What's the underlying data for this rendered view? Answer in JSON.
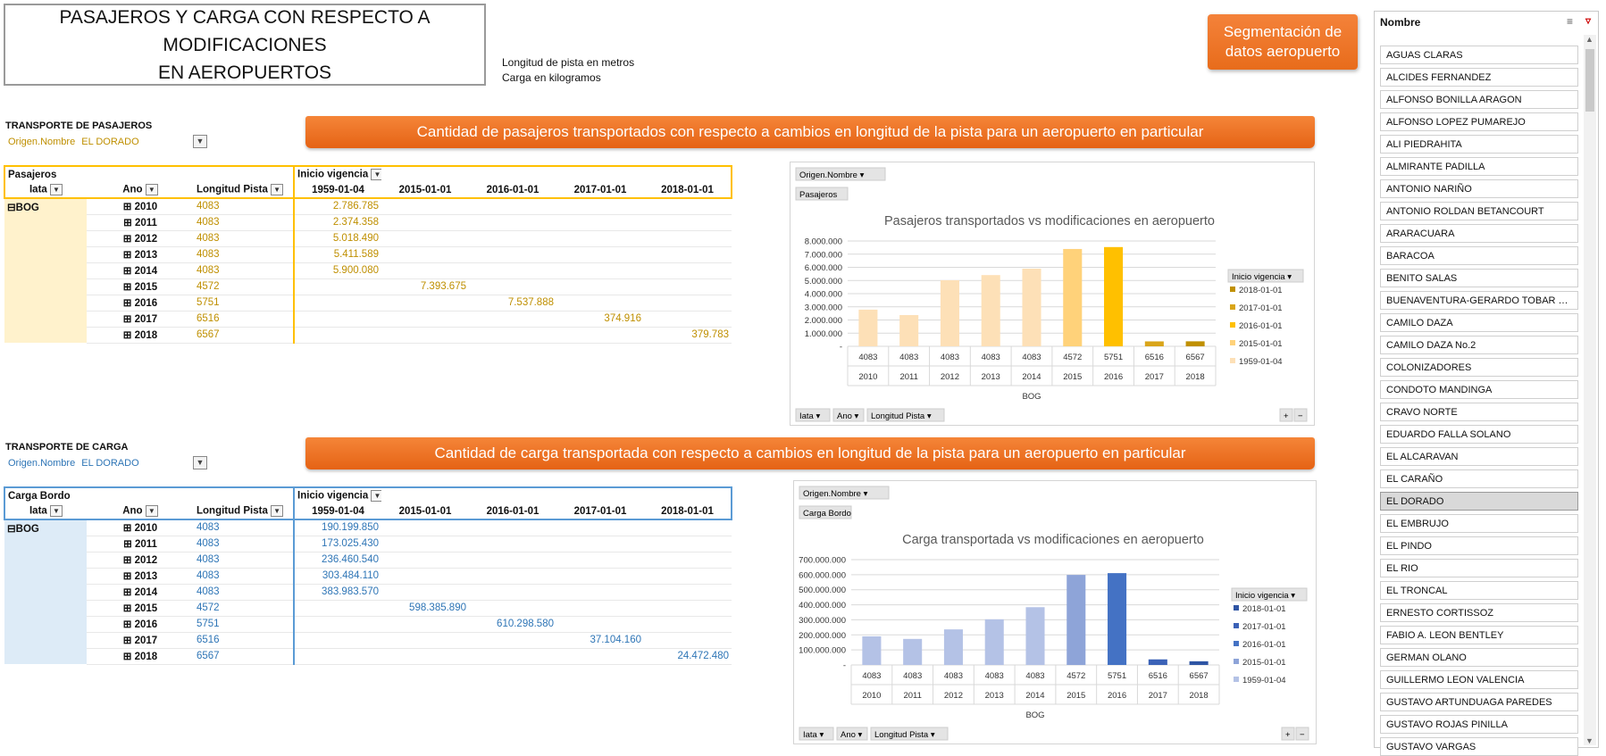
{
  "title": {
    "line1": "PASAJEROS Y CARGA CON RESPECTO A MODIFICACIONES",
    "line2": "EN AEROPUERTOS"
  },
  "units": {
    "line1": "Longitud de pista en metros",
    "line2": "Carga en kilogramos"
  },
  "segment_button": {
    "line1": "Segmentación de",
    "line2": "datos aeropuerto"
  },
  "pax": {
    "section_label": "TRANSPORTE DE PASAJEROS",
    "filter_key": "Origen.Nombre",
    "filter_val": "EL DORADO",
    "banner": "Cantidad de pasajeros transportados con respecto a cambios en longitud de la pista para un aeropuerto en particular",
    "measure": "Pasajeros",
    "col_field": "Inicio vigencia",
    "headers": {
      "iata": "Iata",
      "ano": "Ano",
      "longitud": "Longitud Pista"
    },
    "dates": [
      "1959-01-04",
      "2015-01-01",
      "2016-01-01",
      "2017-01-01",
      "2018-01-01"
    ],
    "iata": "BOG",
    "rows": [
      {
        "year": "2010",
        "len": "4083",
        "vals": [
          "2.786.785",
          "",
          "",
          "",
          ""
        ]
      },
      {
        "year": "2011",
        "len": "4083",
        "vals": [
          "2.374.358",
          "",
          "",
          "",
          ""
        ]
      },
      {
        "year": "2012",
        "len": "4083",
        "vals": [
          "5.018.490",
          "",
          "",
          "",
          ""
        ]
      },
      {
        "year": "2013",
        "len": "4083",
        "vals": [
          "5.411.589",
          "",
          "",
          "",
          ""
        ]
      },
      {
        "year": "2014",
        "len": "4083",
        "vals": [
          "5.900.080",
          "",
          "",
          "",
          ""
        ]
      },
      {
        "year": "2015",
        "len": "4572",
        "vals": [
          "",
          "7.393.675",
          "",
          "",
          ""
        ]
      },
      {
        "year": "2016",
        "len": "5751",
        "vals": [
          "",
          "",
          "7.537.888",
          "",
          ""
        ]
      },
      {
        "year": "2017",
        "len": "6516",
        "vals": [
          "",
          "",
          "",
          "374.916",
          ""
        ]
      },
      {
        "year": "2018",
        "len": "6567",
        "vals": [
          "",
          "",
          "",
          "",
          "379.783"
        ]
      }
    ],
    "chart": {
      "filter_pill": "Origen.Nombre",
      "measure_pill": "Pasajeros",
      "title": "Pasajeros transportados vs modificaciones en aeropuerto",
      "legend_title": "Inicio vigencia",
      "axis_pills": [
        "Iata",
        "Ano",
        "Longitud  Pista"
      ],
      "yticks": [
        "8.000.000",
        "7.000.000",
        "6.000.000",
        "5.000.000",
        "4.000.000",
        "3.000.000",
        "2.000.000",
        "1.000.000",
        "-"
      ],
      "xgroup": "BOG"
    }
  },
  "cargo": {
    "section_label": "TRANSPORTE DE CARGA",
    "filter_key": "Origen.Nombre",
    "filter_val": "EL DORADO",
    "banner": "Cantidad de carga transportada con respecto a cambios en longitud de la pista para un aeropuerto en particular",
    "measure": "Carga Bordo",
    "col_field": "Inicio vigencia",
    "headers": {
      "iata": "Iata",
      "ano": "Ano",
      "longitud": "Longitud Pista"
    },
    "dates": [
      "1959-01-04",
      "2015-01-01",
      "2016-01-01",
      "2017-01-01",
      "2018-01-01"
    ],
    "iata": "BOG",
    "rows": [
      {
        "year": "2010",
        "len": "4083",
        "vals": [
          "190.199.850",
          "",
          "",
          "",
          ""
        ]
      },
      {
        "year": "2011",
        "len": "4083",
        "vals": [
          "173.025.430",
          "",
          "",
          "",
          ""
        ]
      },
      {
        "year": "2012",
        "len": "4083",
        "vals": [
          "236.460.540",
          "",
          "",
          "",
          ""
        ]
      },
      {
        "year": "2013",
        "len": "4083",
        "vals": [
          "303.484.110",
          "",
          "",
          "",
          ""
        ]
      },
      {
        "year": "2014",
        "len": "4083",
        "vals": [
          "383.983.570",
          "",
          "",
          "",
          ""
        ]
      },
      {
        "year": "2015",
        "len": "4572",
        "vals": [
          "",
          "598.385.890",
          "",
          "",
          ""
        ]
      },
      {
        "year": "2016",
        "len": "5751",
        "vals": [
          "",
          "",
          "610.298.580",
          "",
          ""
        ]
      },
      {
        "year": "2017",
        "len": "6516",
        "vals": [
          "",
          "",
          "",
          "37.104.160",
          ""
        ]
      },
      {
        "year": "2018",
        "len": "6567",
        "vals": [
          "",
          "",
          "",
          "",
          "24.472.480"
        ]
      }
    ],
    "chart": {
      "filter_pill": "Origen.Nombre",
      "measure_pill": "Carga Bordo",
      "title": "Carga transportada vs modificaciones en aeropuerto",
      "legend_title": "Inicio vigencia",
      "axis_pills": [
        "Iata",
        "Ano",
        "Longitud  Pista"
      ],
      "yticks": [
        "700.000.000",
        "600.000.000",
        "500.000.000",
        "400.000.000",
        "300.000.000",
        "200.000.000",
        "100.000.000",
        "-"
      ],
      "xgroup": "BOG"
    }
  },
  "chart_data": [
    {
      "type": "bar",
      "title": "Pasajeros transportados vs modificaciones en aeropuerto",
      "categories": [
        "4083 2010",
        "4083 2011",
        "4083 2012",
        "4083 2013",
        "4083 2014",
        "4572 2015",
        "5751 2016",
        "6516 2017",
        "6567 2018"
      ],
      "x_length": [
        "4083",
        "4083",
        "4083",
        "4083",
        "4083",
        "4572",
        "5751",
        "6516",
        "6567"
      ],
      "x_year": [
        "2010",
        "2011",
        "2012",
        "2013",
        "2014",
        "2015",
        "2016",
        "2017",
        "2018"
      ],
      "values": [
        2786785,
        2374358,
        5018490,
        5411589,
        5900080,
        7393675,
        7537888,
        374916,
        379783
      ],
      "series_of_bar": [
        "1959-01-04",
        "1959-01-04",
        "1959-01-04",
        "1959-01-04",
        "1959-01-04",
        "2015-01-01",
        "2016-01-01",
        "2017-01-01",
        "2018-01-01"
      ],
      "legend": [
        {
          "name": "2018-01-01",
          "color": "#c09000"
        },
        {
          "name": "2017-01-01",
          "color": "#d9a51a"
        },
        {
          "name": "2016-01-01",
          "color": "#ffc000"
        },
        {
          "name": "2015-01-01",
          "color": "#ffd27a"
        },
        {
          "name": "1959-01-04",
          "color": "#fde0b7"
        }
      ],
      "ylim": [
        0,
        8000000
      ],
      "legend_placement": "right",
      "grid": true
    },
    {
      "type": "bar",
      "title": "Carga transportada vs modificaciones en aeropuerto",
      "categories": [
        "4083 2010",
        "4083 2011",
        "4083 2012",
        "4083 2013",
        "4083 2014",
        "4572 2015",
        "5751 2016",
        "6516 2017",
        "6567 2018"
      ],
      "x_length": [
        "4083",
        "4083",
        "4083",
        "4083",
        "4083",
        "4572",
        "5751",
        "6516",
        "6567"
      ],
      "x_year": [
        "2010",
        "2011",
        "2012",
        "2013",
        "2014",
        "2015",
        "2016",
        "2017",
        "2018"
      ],
      "values": [
        190199850,
        173025430,
        236460540,
        303484110,
        383983570,
        598385890,
        610298580,
        37104160,
        24472480
      ],
      "series_of_bar": [
        "1959-01-04",
        "1959-01-04",
        "1959-01-04",
        "1959-01-04",
        "1959-01-04",
        "2015-01-01",
        "2016-01-01",
        "2017-01-01",
        "2018-01-01"
      ],
      "legend": [
        {
          "name": "2018-01-01",
          "color": "#2f55a4"
        },
        {
          "name": "2017-01-01",
          "color": "#3b62b7"
        },
        {
          "name": "2016-01-01",
          "color": "#4472c4"
        },
        {
          "name": "2015-01-01",
          "color": "#8ea4d8"
        },
        {
          "name": "1959-01-04",
          "color": "#b4c2e6"
        }
      ],
      "ylim": [
        0,
        700000000
      ],
      "legend_placement": "right",
      "grid": true
    }
  ],
  "slicer": {
    "header": "Nombre",
    "items": [
      "AGUAS CLARAS",
      "ALCIDES FERNANDEZ",
      "ALFONSO BONILLA ARAGON",
      "ALFONSO LOPEZ PUMAREJO",
      "ALI PIEDRAHITA",
      "ALMIRANTE PADILLA",
      "ANTONIO NARIÑO",
      "ANTONIO ROLDAN BETANCOURT",
      "ARARACUARA",
      "BARACOA",
      "BENITO SALAS",
      "BUENAVENTURA-GERARDO TOBAR LO...",
      "CAMILO DAZA",
      "CAMILO DAZA No.2",
      "COLONIZADORES",
      "CONDOTO MANDINGA",
      "CRAVO NORTE",
      "EDUARDO FALLA SOLANO",
      "EL ALCARAVAN",
      "EL CARAÑO",
      "EL DORADO",
      "EL EMBRUJO",
      "EL PINDO",
      "EL RIO",
      "EL TRONCAL",
      "ERNESTO CORTISSOZ",
      "FABIO A. LEON BENTLEY",
      "GERMAN OLANO",
      "GUILLERMO LEON VALENCIA",
      "GUSTAVO ARTUNDUAGA PAREDES",
      "GUSTAVO ROJAS PINILLA",
      "GUSTAVO VARGAS"
    ],
    "selected": "EL DORADO",
    "colors": {
      "pax_accent": "#ffc000",
      "pax_text": "#bf8f00",
      "pax_fill": "#fff2cc",
      "cargo_accent": "#5b9bd5",
      "cargo_text": "#2e75b6",
      "cargo_fill": "#ddebf7",
      "orange": "#ed7d31"
    }
  }
}
